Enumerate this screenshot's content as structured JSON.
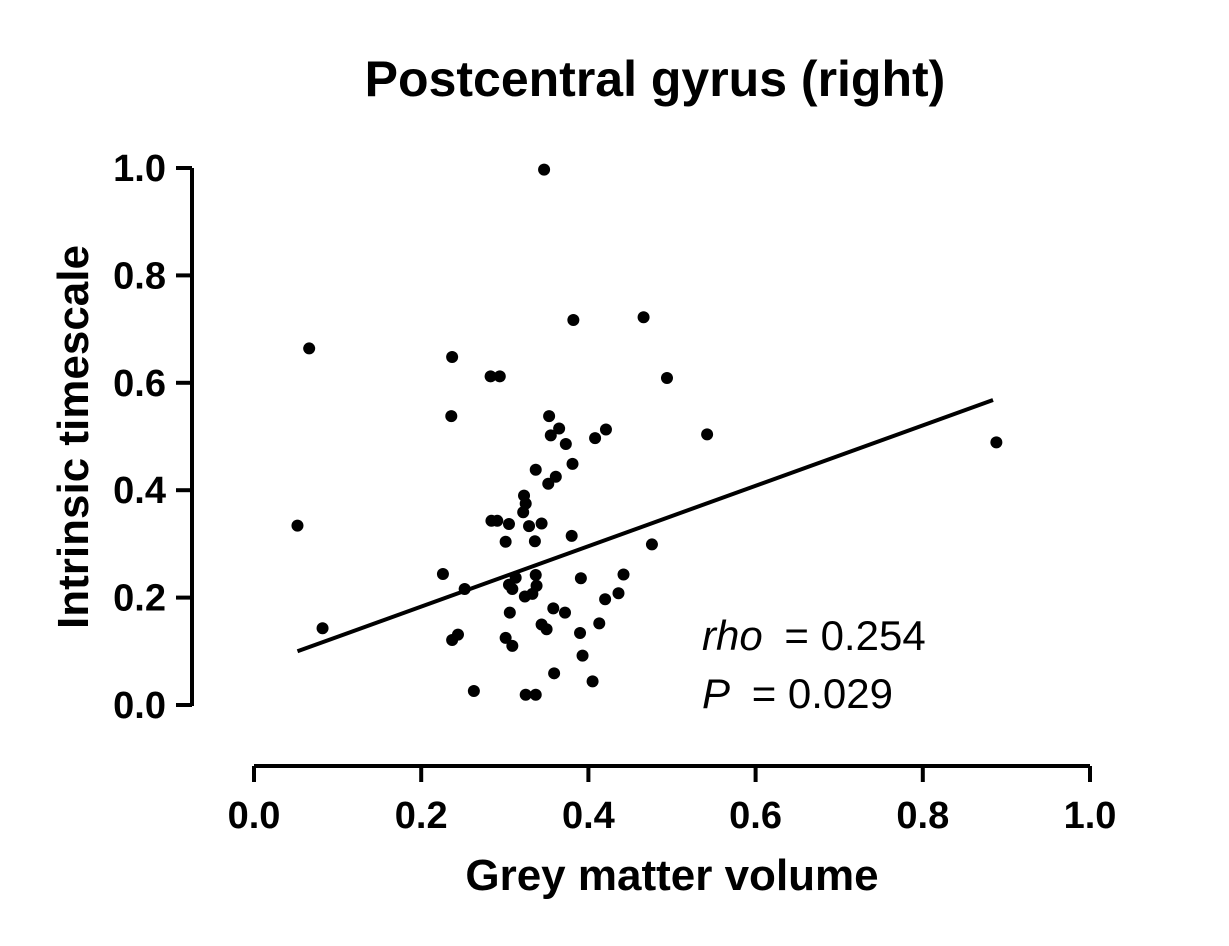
{
  "chart_data": {
    "type": "scatter",
    "title": "Postcentral gyrus (right)",
    "xlabel": "Grey matter volume",
    "ylabel": "Intrinsic timescale",
    "xlim": [
      0.0,
      1.0
    ],
    "ylim": [
      0.0,
      1.0
    ],
    "x_ticks": [
      "0.0",
      "0.2",
      "0.4",
      "0.6",
      "0.8",
      "1.0"
    ],
    "y_ticks": [
      "0.0",
      "0.2",
      "0.4",
      "0.6",
      "0.8",
      "1.0"
    ],
    "grid": false,
    "series": [
      {
        "points": [
          [
            0.347,
            0.997
          ],
          [
            0.066,
            0.664
          ],
          [
            0.382,
            0.717
          ],
          [
            0.466,
            0.722
          ],
          [
            0.237,
            0.648
          ],
          [
            0.283,
            0.612
          ],
          [
            0.294,
            0.612
          ],
          [
            0.494,
            0.609
          ],
          [
            0.236,
            0.538
          ],
          [
            0.353,
            0.538
          ],
          [
            0.365,
            0.515
          ],
          [
            0.355,
            0.502
          ],
          [
            0.421,
            0.513
          ],
          [
            0.408,
            0.497
          ],
          [
            0.542,
            0.504
          ],
          [
            0.888,
            0.489
          ],
          [
            0.373,
            0.486
          ],
          [
            0.381,
            0.449
          ],
          [
            0.337,
            0.438
          ],
          [
            0.361,
            0.425
          ],
          [
            0.352,
            0.412
          ],
          [
            0.323,
            0.39
          ],
          [
            0.325,
            0.375
          ],
          [
            0.322,
            0.359
          ],
          [
            0.052,
            0.334
          ],
          [
            0.284,
            0.343
          ],
          [
            0.291,
            0.343
          ],
          [
            0.305,
            0.337
          ],
          [
            0.344,
            0.338
          ],
          [
            0.329,
            0.333
          ],
          [
            0.38,
            0.315
          ],
          [
            0.336,
            0.305
          ],
          [
            0.301,
            0.304
          ],
          [
            0.476,
            0.299
          ],
          [
            0.226,
            0.244
          ],
          [
            0.337,
            0.242
          ],
          [
            0.313,
            0.237
          ],
          [
            0.391,
            0.236
          ],
          [
            0.442,
            0.243
          ],
          [
            0.305,
            0.224
          ],
          [
            0.338,
            0.222
          ],
          [
            0.252,
            0.216
          ],
          [
            0.309,
            0.216
          ],
          [
            0.333,
            0.207
          ],
          [
            0.324,
            0.202
          ],
          [
            0.436,
            0.208
          ],
          [
            0.42,
            0.197
          ],
          [
            0.306,
            0.172
          ],
          [
            0.358,
            0.18
          ],
          [
            0.372,
            0.172
          ],
          [
            0.344,
            0.15
          ],
          [
            0.413,
            0.152
          ],
          [
            0.35,
            0.141
          ],
          [
            0.082,
            0.143
          ],
          [
            0.39,
            0.134
          ],
          [
            0.244,
            0.131
          ],
          [
            0.237,
            0.121
          ],
          [
            0.301,
            0.125
          ],
          [
            0.309,
            0.11
          ],
          [
            0.393,
            0.092
          ],
          [
            0.359,
            0.059
          ],
          [
            0.405,
            0.044
          ],
          [
            0.263,
            0.026
          ],
          [
            0.325,
            0.019
          ],
          [
            0.337,
            0.019
          ]
        ]
      }
    ],
    "fit_line": {
      "x": [
        0.052,
        0.884
      ],
      "y": [
        0.1,
        0.568
      ]
    },
    "annotations": {
      "rho_label": "rho",
      "rho_value": "= 0.254",
      "p_label": "P",
      "p_value": "= 0.029"
    }
  }
}
